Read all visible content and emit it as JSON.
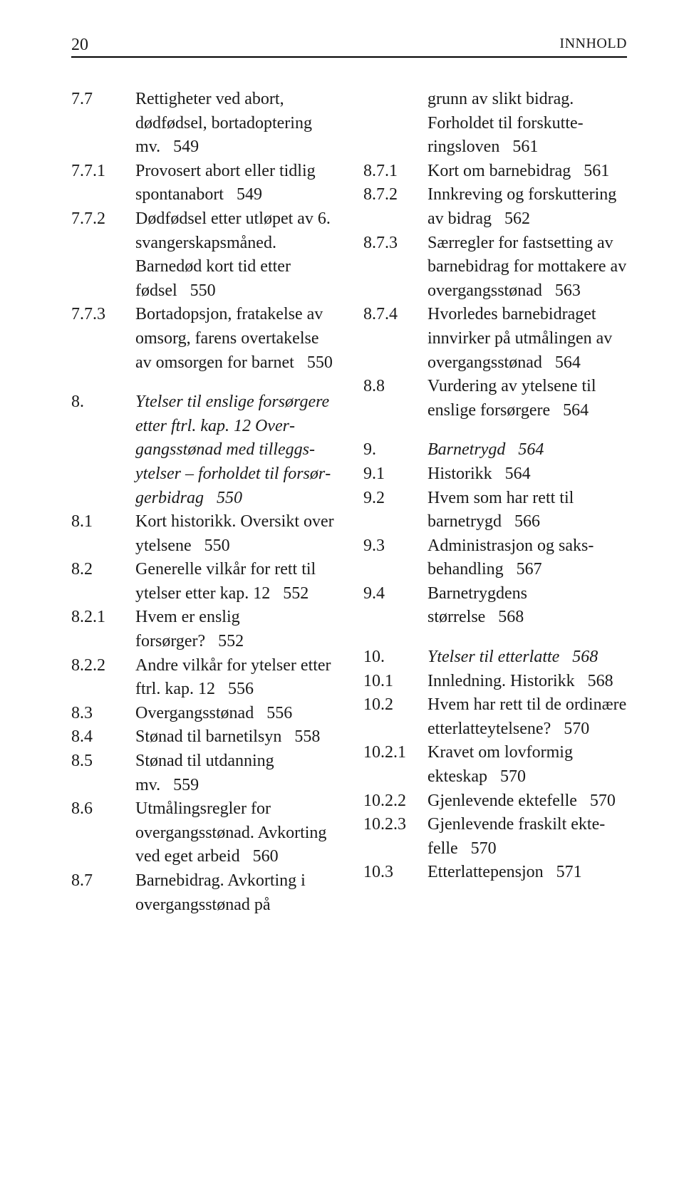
{
  "header": {
    "page_number": "20",
    "label": "INNHOLD"
  },
  "left": [
    {
      "num": "7.7",
      "text": "Rettigheter ved abort, dødfødsel, bortadopte­ring mv.   549"
    },
    {
      "num": "7.7.1",
      "text": "Provosert abort eller tidlig spontan­abort   549"
    },
    {
      "num": "7.7.2",
      "text": "Dødfødsel etter utløpet av 6. svangerskaps­måned. Barnedød kort tid etter fødsel   550"
    },
    {
      "num": "7.7.3",
      "text": "Bortadopsjon, fratakelse av omsorg, farens over­takelse av omsorgen for barnet   550"
    },
    {
      "gap": true
    },
    {
      "num": "8.",
      "italic": true,
      "text": "Ytelser til enslige forsørgere etter ftrl. kap. 12 Over­gangsstønad med tilleggs­ytelser – forholdet til forsør­gerbidrag   550"
    },
    {
      "num": "8.1",
      "text": "Kort historikk. Oversikt over ytelsene   550"
    },
    {
      "num": "8.2",
      "text": "Generelle vilkår for rett til ytelser etter kap. 12   552"
    },
    {
      "num": "8.2.1",
      "text": "Hvem er enslig forsørger?   552"
    },
    {
      "num": "8.2.2",
      "text": "Andre vilkår for ytelser etter ftrl. kap. 12   556"
    },
    {
      "num": "8.3",
      "text": "Overgangsstønad   556"
    },
    {
      "num": "8.4",
      "text": "Stønad til barne­tilsyn   558"
    },
    {
      "num": "8.5",
      "text": "Stønad til utdanning mv.   559"
    },
    {
      "num": "8.6",
      "text": "Utmålingsregler for overgangsstønad. Avkorting ved eget arbeid   560"
    },
    {
      "num": "8.7",
      "text": "Barnebidrag. Avkorting i overgangsstønad på"
    }
  ],
  "right": [
    {
      "num": "",
      "text": "grunn av slikt bidrag. Forholdet til forskutte­ringsloven   561"
    },
    {
      "num": "8.7.1",
      "text": "Kort om barne­bidrag   561"
    },
    {
      "num": "8.7.2",
      "text": "Innkreving og forskutte­ring av bidrag   562"
    },
    {
      "num": "8.7.3",
      "text": "Særregler for fastsetting av barnebidrag for mot­takere av overgangs­stønad   563"
    },
    {
      "num": "8.7.4",
      "text": "Hvorledes barne­bidraget innvirker på utmålingen av over­gangsstønad   564"
    },
    {
      "num": "8.8",
      "text": "Vurdering av ytelsene til enslige forsørgere   564"
    },
    {
      "gap": true
    },
    {
      "num": "9.",
      "italic": true,
      "text": "Barnetrygd   564"
    },
    {
      "num": "9.1",
      "text": "Historikk   564"
    },
    {
      "num": "9.2",
      "text": "Hvem som har rett til barnetrygd   566"
    },
    {
      "num": "9.3",
      "text": "Administrasjon og saks­behandling   567"
    },
    {
      "num": "9.4",
      "text": "Barnetrygdens størrelse   568"
    },
    {
      "gap": true
    },
    {
      "num": "10.",
      "italic": true,
      "text": "Ytelser til etterlatte   568"
    },
    {
      "num": "10.1",
      "text": "Innledning. Historikk   568"
    },
    {
      "num": "10.2",
      "text": "Hvem har rett til de ordinære etterlatte­ytelsene?   570"
    },
    {
      "num": "10.2.1",
      "text": "Kravet om lovformig ekteskap   570"
    },
    {
      "num": "10.2.2",
      "text": "Gjenlevende ektefelle   570"
    },
    {
      "num": "10.2.3",
      "text": "Gjenlevende fraskilt ekte­felle   570"
    },
    {
      "num": "10.3",
      "text": "Etterlattepensjon   571"
    }
  ]
}
